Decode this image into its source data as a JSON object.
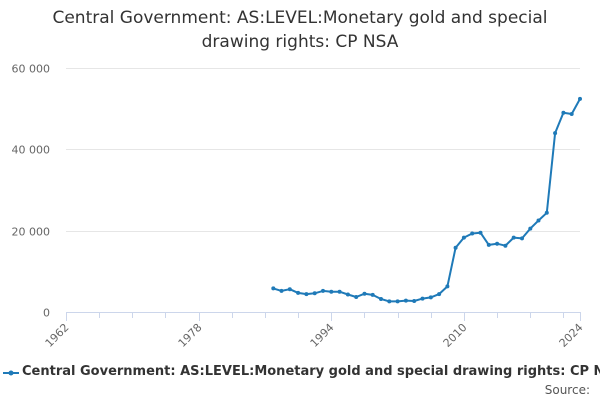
{
  "chart_data": {
    "type": "line",
    "title": "Central Government: AS:LEVEL:Monetary gold and special drawing rights: CP NSA",
    "title_lines": [
      "Central Government: AS:LEVEL:Monetary gold and special",
      "drawing rights: CP NSA"
    ],
    "xlabel": "",
    "ylabel": "",
    "xlim": [
      1962,
      2024
    ],
    "ylim": [
      0,
      60000
    ],
    "x_ticks": [
      1962,
      1978,
      1994,
      2010,
      2024
    ],
    "y_ticks": [
      0,
      20000,
      40000,
      60000
    ],
    "y_tick_labels": [
      "0",
      "20 000",
      "40 000",
      "60 000"
    ],
    "grid": true,
    "legend_position": "bottom-left",
    "colors": {
      "series": "#1f7ab8",
      "grid": "#e6e6e6",
      "axis": "#ccd6eb",
      "tick_text": "#666666"
    },
    "series": [
      {
        "name": "Central Government: AS:LEVEL:Monetary gold and special drawing rights: CP NSA",
        "x": [
          1987,
          1988,
          1989,
          1990,
          1991,
          1992,
          1993,
          1994,
          1995,
          1996,
          1997,
          1998,
          1999,
          2000,
          2001,
          2002,
          2003,
          2004,
          2005,
          2006,
          2007,
          2008,
          2009,
          2010,
          2011,
          2012,
          2013,
          2014,
          2015,
          2016,
          2017,
          2018,
          2019,
          2020,
          2021,
          2022,
          2023,
          2024
        ],
        "values": [
          5800,
          5200,
          5600,
          4700,
          4400,
          4600,
          5200,
          5000,
          5000,
          4300,
          3700,
          4500,
          4200,
          3200,
          2600,
          2600,
          2800,
          2700,
          3300,
          3600,
          4400,
          6300,
          15800,
          18300,
          19300,
          19500,
          16500,
          16800,
          16300,
          18300,
          18100,
          20500,
          22500,
          24400,
          44000,
          49000,
          48700,
          52400
        ]
      }
    ]
  },
  "legend": {
    "label": "Central Government: AS:LEVEL:Monetary gold and special drawing rights: CP NSA"
  },
  "source": {
    "label": "Source:"
  }
}
